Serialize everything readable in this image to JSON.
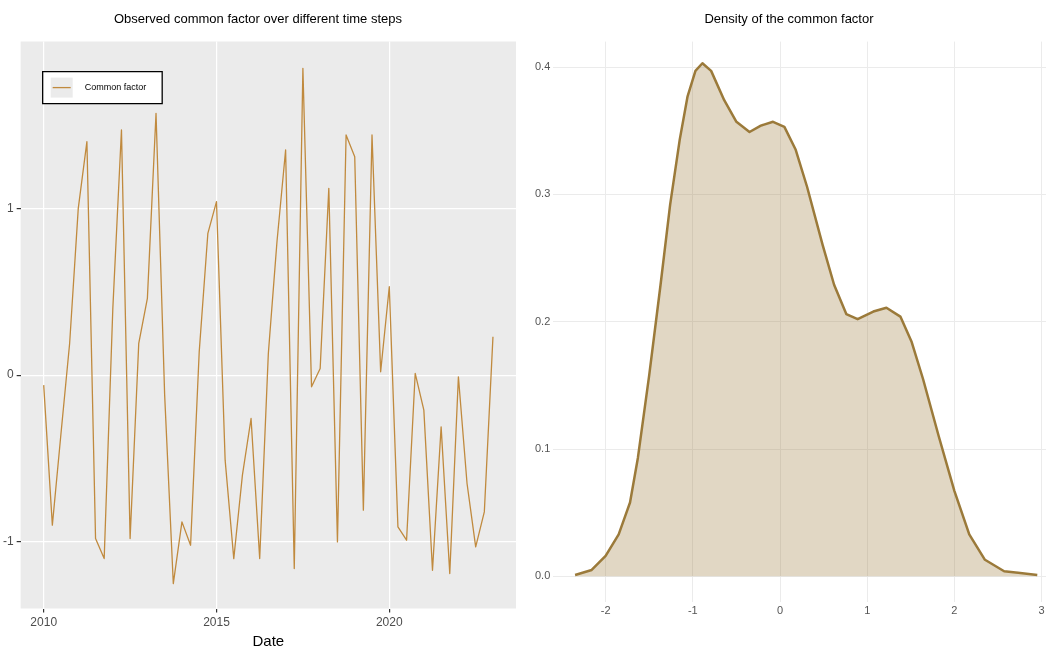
{
  "chart_data": [
    {
      "type": "line",
      "title": "Observed common factor over different time steps",
      "xlabel": "Date",
      "x": [
        "2010-01",
        "2010-04",
        "2010-07",
        "2010-10",
        "2011-01",
        "2011-04",
        "2011-07",
        "2011-10",
        "2012-01",
        "2012-04",
        "2012-07",
        "2012-10",
        "2013-01",
        "2013-04",
        "2013-07",
        "2013-10",
        "2014-01",
        "2014-04",
        "2014-07",
        "2014-10",
        "2015-01",
        "2015-04",
        "2015-07",
        "2015-10",
        "2016-01",
        "2016-04",
        "2016-07",
        "2016-10",
        "2017-01",
        "2017-04",
        "2017-07",
        "2017-10",
        "2018-01",
        "2018-04",
        "2018-07",
        "2018-10",
        "2019-01",
        "2019-04",
        "2019-07",
        "2019-10",
        "2020-01",
        "2020-04",
        "2020-07",
        "2020-10",
        "2021-01",
        "2021-04",
        "2021-07",
        "2021-10",
        "2022-01",
        "2022-04",
        "2022-07",
        "2022-10",
        "2023-01"
      ],
      "series": [
        {
          "name": "Common factor",
          "color": "#c08a3e",
          "values": [
            -0.06,
            -0.9,
            -0.35,
            0.19,
            1.0,
            1.4,
            -0.98,
            -1.1,
            0.4,
            1.47,
            -0.98,
            0.19,
            0.46,
            1.57,
            -0.12,
            -1.25,
            -0.88,
            -1.02,
            0.14,
            0.85,
            1.04,
            -0.51,
            -1.1,
            -0.6,
            -0.26,
            -1.1,
            0.13,
            0.8,
            1.35,
            -1.16,
            1.84,
            -0.07,
            0.04,
            1.12,
            -1.0,
            1.44,
            1.31,
            -0.81,
            1.44,
            0.02,
            0.53,
            -0.91,
            -0.99,
            0.01,
            -0.21,
            -1.17,
            -0.31,
            -1.19,
            -0.01,
            -0.65,
            -1.03,
            -0.82,
            0.23
          ]
        }
      ],
      "xlim": [
        "2009-05",
        "2023-09"
      ],
      "xticks": [
        "2010",
        "2015",
        "2020"
      ],
      "ylim": [
        -1.4,
        2.0
      ],
      "yticks": [
        -1,
        0,
        1
      ],
      "grid": true,
      "legend": "top left",
      "marker": "none"
    },
    {
      "type": "area",
      "title": "Density of the common factor",
      "x": [
        -2.35,
        -2.16,
        -2.0,
        -1.85,
        -1.72,
        -1.63,
        -1.5,
        -1.37,
        -1.26,
        -1.15,
        -1.06,
        -0.97,
        -0.89,
        -0.79,
        -0.64,
        -0.5,
        -0.35,
        -0.22,
        -0.08,
        0.05,
        0.18,
        0.31,
        0.49,
        0.62,
        0.76,
        0.89,
        1.07,
        1.22,
        1.38,
        1.51,
        1.64,
        1.82,
        2.0,
        2.17,
        2.35,
        2.57,
        2.95
      ],
      "series": [
        {
          "color": "#9b7a3a",
          "values": [
            0.001,
            0.005,
            0.016,
            0.033,
            0.058,
            0.093,
            0.158,
            0.229,
            0.292,
            0.343,
            0.377,
            0.397,
            0.403,
            0.397,
            0.374,
            0.357,
            0.349,
            0.354,
            0.357,
            0.353,
            0.335,
            0.306,
            0.26,
            0.229,
            0.206,
            0.202,
            0.208,
            0.211,
            0.204,
            0.184,
            0.155,
            0.11,
            0.067,
            0.033,
            0.013,
            0.004,
            0.001
          ]
        }
      ],
      "xlim": [
        -2.6,
        3.05
      ],
      "xticks": [
        -2,
        -1,
        0,
        1,
        2,
        3
      ],
      "ylim": [
        -0.02,
        0.42
      ],
      "yticks": [
        {
          "value": 0,
          "label": "0.0"
        },
        0.1,
        0.2,
        0.3,
        0.4
      ],
      "grid": true,
      "marker": "none"
    }
  ]
}
